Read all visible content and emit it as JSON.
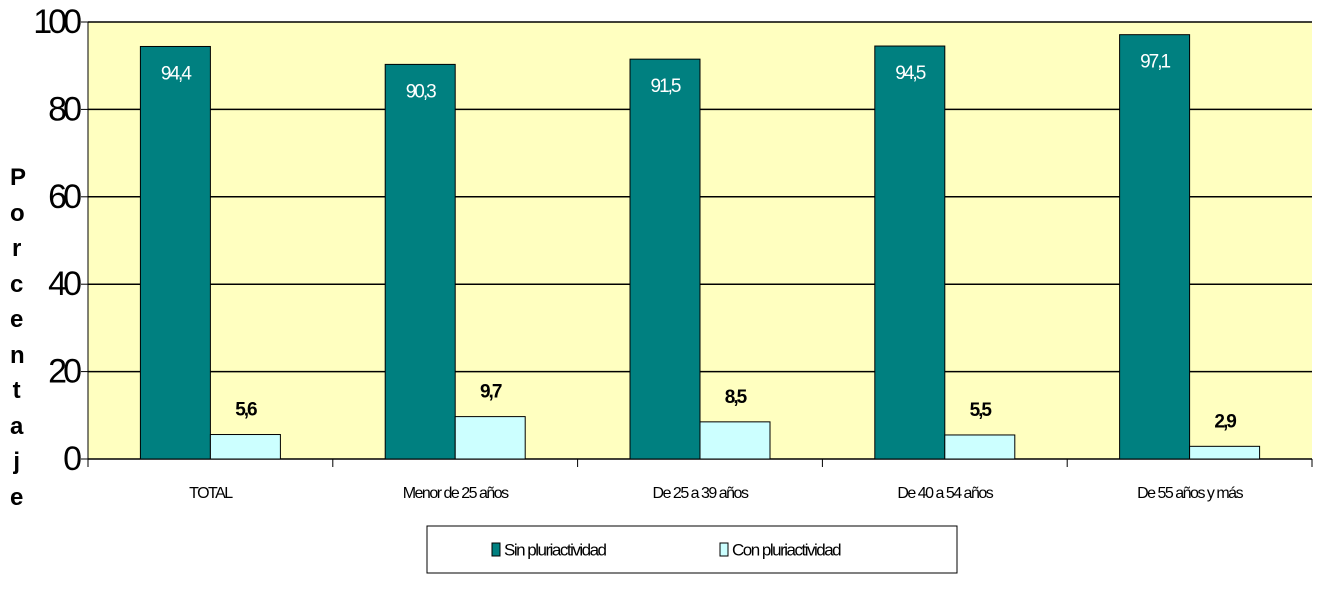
{
  "chart_data": {
    "type": "bar",
    "y_label": "Porcentaje",
    "categories": [
      "TOTAL",
      "Menor de 25 años",
      "De 25 a 39 años",
      "De 40 a 54 años",
      "De 55 años y más"
    ],
    "series": [
      {
        "name": "Sin pluriactividad",
        "color": "#008080",
        "values": [
          94.4,
          90.3,
          91.5,
          94.5,
          97.1
        ],
        "value_labels": [
          "94,4",
          "90,3",
          "91,5",
          "94,5",
          "97,1"
        ]
      },
      {
        "name": "Con pluriactividad",
        "color": "#ccffff",
        "values": [
          5.6,
          9.7,
          8.5,
          5.5,
          2.9
        ],
        "value_labels": [
          "5,6",
          "9,7",
          "8,5",
          "5,5",
          "2,9"
        ]
      }
    ],
    "ylim": [
      0,
      100
    ],
    "yticks": [
      0,
      20,
      40,
      60,
      80,
      100
    ],
    "grid": true,
    "plot_background": "#ffffc0",
    "legend": "bottom"
  }
}
